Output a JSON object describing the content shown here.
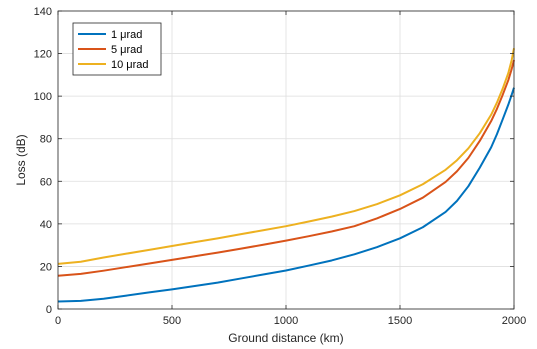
{
  "chart_data": {
    "type": "line",
    "title": "",
    "xlabel": "Ground distance (km)",
    "ylabel": "Loss (dB)",
    "xlim": [
      0,
      2000
    ],
    "ylim": [
      0,
      140
    ],
    "x_ticks": [
      "0",
      "500",
      "1000",
      "1500",
      "2000"
    ],
    "y_ticks": [
      "0",
      "20",
      "40",
      "60",
      "80",
      "100",
      "120",
      "140"
    ],
    "grid": true,
    "legend_position": "top-left",
    "x": [
      0,
      100,
      200,
      300,
      400,
      500,
      600,
      700,
      800,
      900,
      1000,
      1100,
      1200,
      1300,
      1400,
      1500,
      1600,
      1700,
      1750,
      1800,
      1850,
      1900,
      1925,
      1950,
      1975,
      1990,
      2000
    ],
    "series": [
      {
        "name": "1 μrad",
        "color": "#0072BD",
        "values": [
          3.5,
          3.8,
          4.8,
          6.3,
          7.8,
          9.2,
          10.8,
          12.4,
          14.3,
          16.2,
          18.1,
          20.4,
          22.8,
          25.7,
          29.1,
          33.2,
          38.4,
          45.6,
          50.8,
          57.7,
          66.4,
          76.0,
          82.1,
          89.0,
          96.0,
          100.7,
          104.0
        ]
      },
      {
        "name": "5 μrad",
        "color": "#D95319",
        "values": [
          15.6,
          16.5,
          18.0,
          19.7,
          21.4,
          23.1,
          24.8,
          26.5,
          28.3,
          30.2,
          32.1,
          34.2,
          36.4,
          38.9,
          42.6,
          47.0,
          52.3,
          59.7,
          64.7,
          71.0,
          79.0,
          88.3,
          94.0,
          100.5,
          107.5,
          112.8,
          117.0
        ]
      },
      {
        "name": "10 μrad",
        "color": "#EDB120",
        "values": [
          21.2,
          22.2,
          24.2,
          26.0,
          27.8,
          29.6,
          31.4,
          33.2,
          35.1,
          37.0,
          38.9,
          41.1,
          43.4,
          46.0,
          49.3,
          53.4,
          58.6,
          65.4,
          69.9,
          75.5,
          82.6,
          91.3,
          96.9,
          103.4,
          110.8,
          117.0,
          122.5
        ]
      }
    ]
  }
}
